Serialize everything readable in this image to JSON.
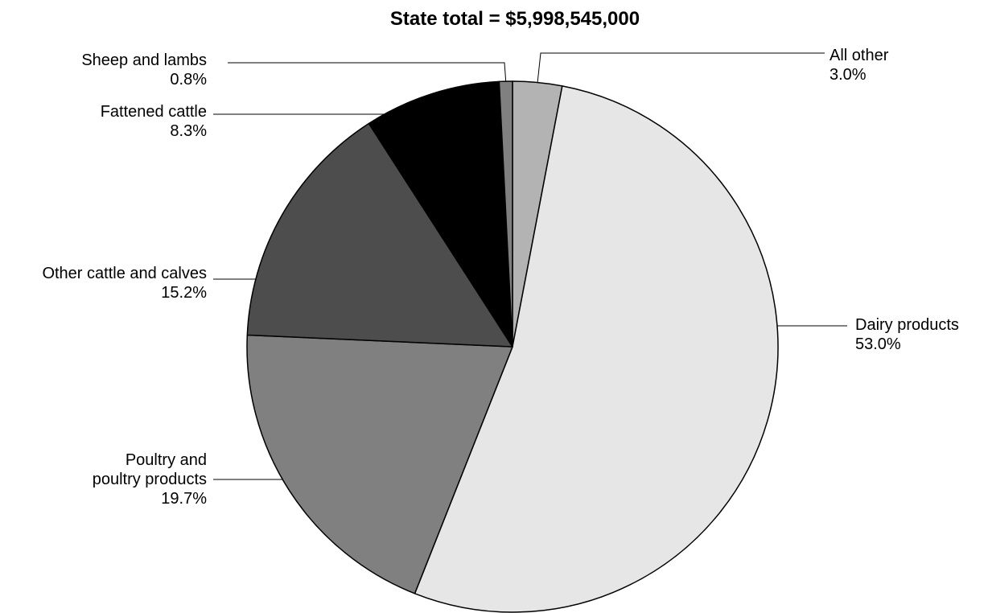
{
  "chart_data": {
    "type": "pie",
    "title": "State total = $5,998,545,000",
    "slices": [
      {
        "label_lines": [
          "All other"
        ],
        "value": 3.0,
        "value_label": "3.0%",
        "color": "#b3b3b3"
      },
      {
        "label_lines": [
          "Dairy products"
        ],
        "value": 53.0,
        "value_label": "53.0%",
        "color": "#e6e6e6"
      },
      {
        "label_lines": [
          "Poultry and",
          "poultry products"
        ],
        "value": 19.7,
        "value_label": "19.7%",
        "color": "#808080"
      },
      {
        "label_lines": [
          "Other cattle and calves"
        ],
        "value": 15.2,
        "value_label": "15.2%",
        "color": "#4d4d4d"
      },
      {
        "label_lines": [
          "Fattened cattle"
        ],
        "value": 8.3,
        "value_label": "8.3%",
        "color": "#000000"
      },
      {
        "label_lines": [
          "Sheep and lambs"
        ],
        "value": 0.8,
        "value_label": "0.8%",
        "color": "#808080"
      }
    ]
  }
}
